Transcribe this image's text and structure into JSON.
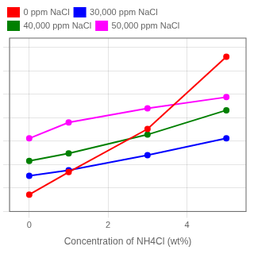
{
  "chart_data": {
    "type": "line",
    "x": [
      0,
      1,
      3,
      5
    ],
    "series": [
      {
        "name": "0 ppm NaCl",
        "color": "#ff0000",
        "values": [
          0.18,
          0.42,
          0.88,
          1.65
        ]
      },
      {
        "name": "30,000 ppm NaCl",
        "color": "#0000ff",
        "values": [
          0.38,
          0.44,
          0.6,
          0.78
        ]
      },
      {
        "name": "40,000 ppm NaCl",
        "color": "#008000",
        "values": [
          0.54,
          0.62,
          0.82,
          1.08
        ]
      },
      {
        "name": "50,000 ppm NaCl",
        "color": "#ff00ff",
        "values": [
          0.78,
          0.95,
          1.1,
          1.22
        ]
      }
    ],
    "xlabel": "Concentration of NH4Cl (wt%)",
    "xlim": [
      -0.5,
      5.5
    ],
    "ylim": [
      0.0,
      1.85
    ],
    "xticks": [
      0,
      2,
      4
    ],
    "yticks": [
      0,
      0.25,
      0.5,
      0.75,
      1,
      1.25,
      1.5,
      1.75
    ],
    "tick_labels": "x",
    "grid": true,
    "legend": "upper left",
    "marker": "circle",
    "line_style": "solid"
  }
}
